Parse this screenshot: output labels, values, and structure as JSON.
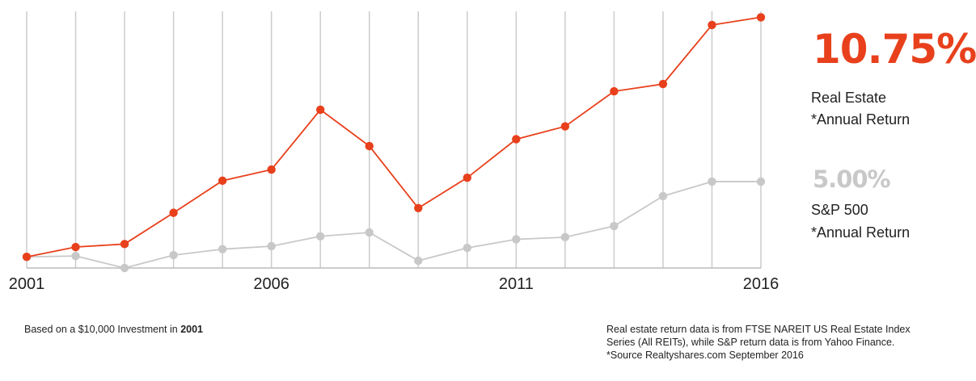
{
  "chart_data": {
    "type": "line",
    "x": [
      2001,
      2002,
      2003,
      2004,
      2005,
      2006,
      2007,
      2008,
      2009,
      2010,
      2011,
      2012,
      2013,
      2014,
      2015,
      2016
    ],
    "xticks": [
      "2001",
      "2006",
      "2011",
      "2016"
    ],
    "series": [
      {
        "name": "Real Estate",
        "color": "#e8401c",
        "values": [
          0.26,
          0.49,
          0.56,
          1.29,
          2.04,
          2.3,
          3.7,
          2.85,
          1.4,
          2.11,
          3.01,
          3.31,
          4.13,
          4.3,
          5.68,
          5.86
        ]
      },
      {
        "name": "S&P 500",
        "color": "#c8c8c8",
        "values": [
          0.26,
          0.28,
          0.0,
          0.3,
          0.44,
          0.51,
          0.74,
          0.83,
          0.17,
          0.47,
          0.67,
          0.72,
          0.98,
          1.68,
          2.02,
          2.02
        ]
      }
    ],
    "ylim": [
      0,
      6
    ],
    "grid": "vertical",
    "legend": "right"
  },
  "summary": {
    "real_estate": {
      "value": "10.75%",
      "line1": "Real Estate",
      "line2": "*Annual Return",
      "color": "#e8401c"
    },
    "sp500": {
      "value": "5.00%",
      "line1": "S&P 500",
      "line2": "*Annual Return",
      "color": "#c8c8c8"
    }
  },
  "footnote_left": {
    "text": "Based on a $10,000 Investment in ",
    "bold": "2001"
  },
  "footnote_right": {
    "line1": "Real estate return data is from FTSE NAREIT US Real Estate Index",
    "line2": "Series (All REITs), while S&P return data is from Yahoo Finance.",
    "line3": "*Source Realtyshares.com September 2016"
  },
  "colors": {
    "grid": "#cccccc",
    "axis": "#bbbbbb"
  }
}
